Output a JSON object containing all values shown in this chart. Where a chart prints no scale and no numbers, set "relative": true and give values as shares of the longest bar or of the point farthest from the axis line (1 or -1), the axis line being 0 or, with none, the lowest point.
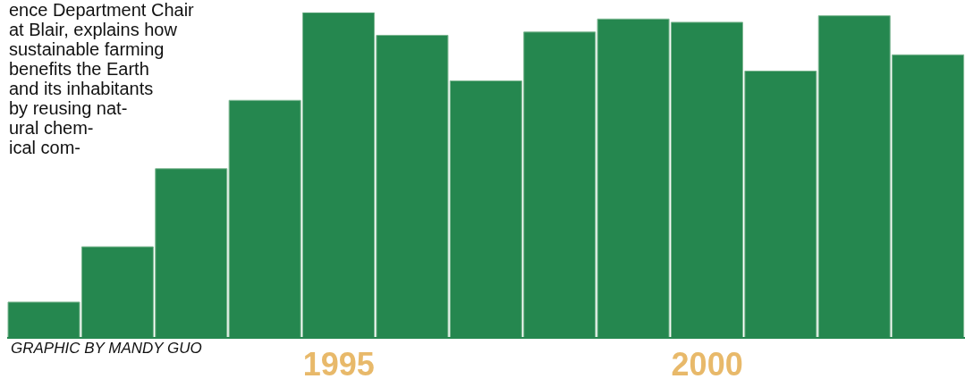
{
  "chart_data": {
    "type": "bar",
    "relative": true,
    "categories": [
      null,
      null,
      null,
      null,
      "1995",
      null,
      null,
      null,
      null,
      "2000",
      null,
      null,
      null
    ],
    "values": [
      0.11,
      0.28,
      0.52,
      0.73,
      1,
      0.93,
      0.79,
      0.94,
      0.98,
      0.97,
      0.82,
      0.99,
      0.87
    ],
    "color": "#25874f",
    "annotations": [
      "ence Department Chair\nat Blair, explains how\nsustainable farming\nbenefits the Earth\nand its inhabitants\nby reusing nat-\nural chem-\nical com-",
      "GRAPHIC BY MANDY GUO"
    ]
  }
}
